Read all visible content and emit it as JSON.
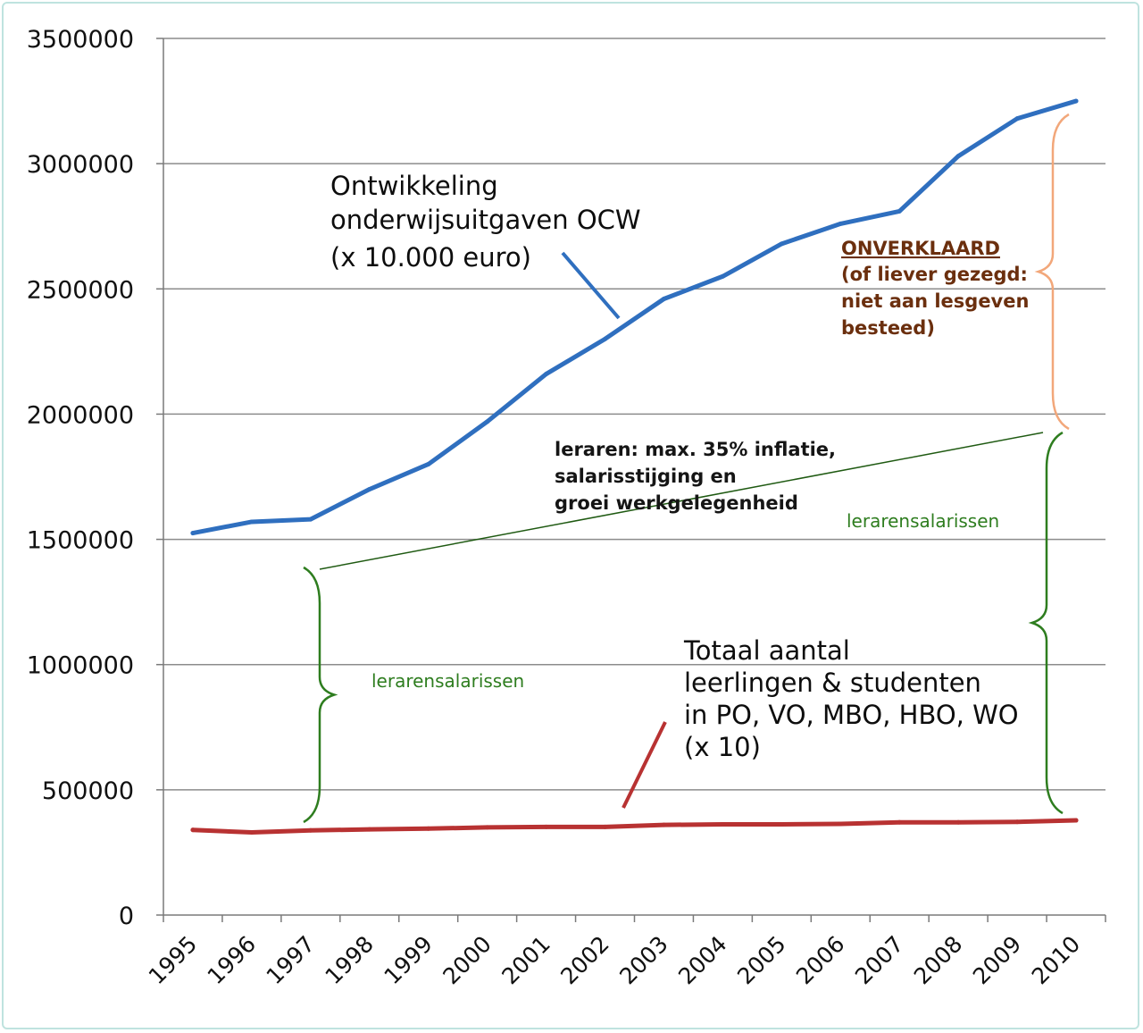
{
  "chart_data": {
    "type": "line",
    "x": [
      "1995",
      "1996",
      "1997",
      "1998",
      "1999",
      "2000",
      "2001",
      "2002",
      "2003",
      "2004",
      "2005",
      "2006",
      "2007",
      "2008",
      "2009",
      "2010"
    ],
    "ylim": [
      0,
      3500000
    ],
    "yticks": [
      "0",
      "500000",
      "1000000",
      "1500000",
      "2000000",
      "2500000",
      "3000000",
      "3500000"
    ],
    "grid": true,
    "series": [
      {
        "name": "Ontwikkeling onderwijsuitgaven OCW (x 10.000 euro)",
        "color": "#2f6fbf",
        "values": [
          1525000,
          1570000,
          1580000,
          1700000,
          1800000,
          1970000,
          2160000,
          2300000,
          2460000,
          2550000,
          2680000,
          2760000,
          2810000,
          3030000,
          3180000,
          3250000
        ]
      },
      {
        "name": "Totaal aantal leerlingen & studenten in PO, VO, MBO, HBO, WO (x 10)",
        "color": "#b83232",
        "values": [
          340000,
          330000,
          338000,
          342000,
          345000,
          350000,
          352000,
          352000,
          360000,
          362000,
          362000,
          364000,
          370000,
          370000,
          372000,
          378000
        ]
      }
    ],
    "annotations": {
      "ocw_label": [
        "Ontwikkeling",
        "onderwijsuitgaven OCW",
        "(x 10.000 euro)"
      ],
      "students_label": [
        "Totaal aantal",
        "leerlingen & studenten",
        "in PO, VO, MBO, HBO, WO",
        "(x 10)"
      ],
      "leraren_trend": [
        "leraren: max. 35% inflatie,",
        "salarisstijging en",
        "groei werkgelegenheid"
      ],
      "salaries_left": "lerarensalarissen",
      "salaries_right": "lerarensalarissen",
      "unexplained": [
        "ONVERKLAARD",
        "(of liever gezegd:",
        "niet aan lesgeven",
        "besteed)"
      ]
    }
  },
  "colors": {
    "ocw_line": "#2f6fbf",
    "students_line": "#b83232",
    "brace_green": "#2e7d1f",
    "brace_orange": "#f2a77a",
    "unexplained_text": "#6b2f0e",
    "grid": "#8c8c8c"
  }
}
